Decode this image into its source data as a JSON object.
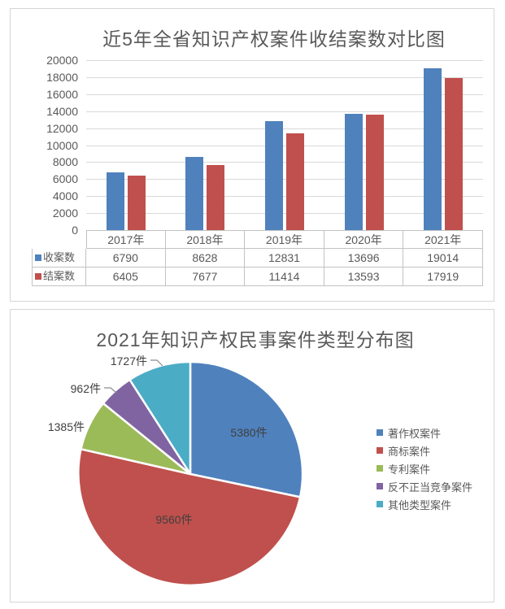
{
  "chart_data": [
    {
      "type": "bar",
      "title": "近5年全省知识产权案件收结案数对比图",
      "categories": [
        "2017年",
        "2018年",
        "2019年",
        "2020年",
        "2021年"
      ],
      "series": [
        {
          "name": "收案数",
          "color": "#4F81BD",
          "values": [
            6790,
            8628,
            12831,
            13696,
            19014
          ]
        },
        {
          "name": "结案数",
          "color": "#C0504D",
          "values": [
            6405,
            7677,
            11414,
            13593,
            17919
          ]
        }
      ],
      "ylim": [
        0,
        20000
      ],
      "yticks": [
        0,
        2000,
        4000,
        6000,
        8000,
        10000,
        12000,
        14000,
        16000,
        18000,
        20000
      ],
      "grid": true,
      "legend_position": "data-table-left",
      "data_table": true
    },
    {
      "type": "pie",
      "title": "2021年知识产权民事案件类型分布图",
      "total": 19014,
      "start_angle": 0,
      "direction": "clockwise",
      "legend_position": "right",
      "slices": [
        {
          "label": "著作权案件",
          "value": 5380,
          "display": "5380件",
          "color": "#4F81BD",
          "label_placement": "inside"
        },
        {
          "label": "商标案件",
          "value": 9560,
          "display": "9560件",
          "color": "#C0504D",
          "label_placement": "inside"
        },
        {
          "label": "专利案件",
          "value": 1385,
          "display": "1385件",
          "color": "#9BBB59",
          "label_placement": "outside"
        },
        {
          "label": "反不正当竞争案件",
          "value": 962,
          "display": "962件",
          "color": "#8064A2",
          "label_placement": "outside-leader"
        },
        {
          "label": "其他类型案件",
          "value": 1727,
          "display": "1727件",
          "color": "#4BACC6",
          "label_placement": "outside-leader"
        }
      ]
    }
  ]
}
